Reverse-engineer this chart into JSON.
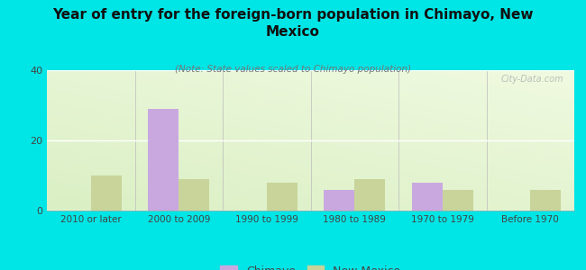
{
  "title": "Year of entry for the foreign-born population in Chimayo, New\nMexico",
  "subtitle": "(Note: State values scaled to Chimayo population)",
  "categories": [
    "2010 or later",
    "2000 to 2009",
    "1990 to 1999",
    "1980 to 1989",
    "1970 to 1979",
    "Before 1970"
  ],
  "chimayo_values": [
    0,
    29,
    0,
    6,
    8,
    0
  ],
  "nm_values": [
    10,
    9,
    8,
    9,
    6,
    6
  ],
  "chimayo_color": "#c9a8e0",
  "nm_color": "#c8d49a",
  "background_color": "#00e5e5",
  "ylim": [
    0,
    40
  ],
  "yticks": [
    0,
    20,
    40
  ],
  "bar_width": 0.35,
  "legend_chimayo": "Chimayo",
  "legend_nm": "New Mexico",
  "watermark": "City-Data.com"
}
